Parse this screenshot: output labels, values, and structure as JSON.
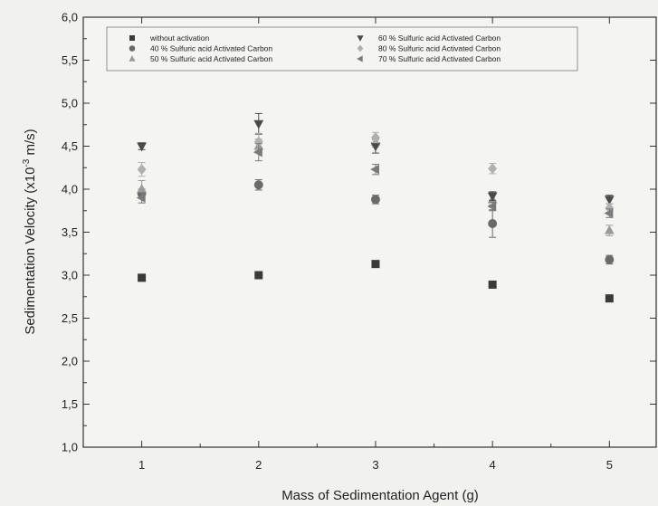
{
  "chart_data": {
    "type": "scatter",
    "xlabel": "Mass of Sedimentation Agent (g)",
    "ylabel": "Sedimentation Velocity (x10",
    "ylabel_sup": "-3",
    "ylabel_suffix": " m/s)",
    "xlim": [
      0.5,
      5.4
    ],
    "ylim": [
      1.0,
      6.0
    ],
    "xticks": [
      "1",
      "2",
      "3",
      "4",
      "5"
    ],
    "yticks": [
      "1,0",
      "1,5",
      "2,0",
      "2,5",
      "3,0",
      "3,5",
      "4,0",
      "4,5",
      "5,0",
      "5,5",
      "6,0"
    ],
    "legend_position": "top-left",
    "series": [
      {
        "name": "without activation",
        "marker": "square",
        "color": "#3a3a3a",
        "x": [
          1,
          2,
          3,
          4,
          5
        ],
        "y": [
          2.97,
          3.0,
          3.13,
          2.89,
          2.73
        ],
        "err": [
          0,
          0,
          0,
          0,
          0
        ]
      },
      {
        "name": "40 % Sulfuric acid Activated Carbon",
        "marker": "circle",
        "color": "#6a6a6a",
        "x": [
          1,
          2,
          3,
          4,
          5
        ],
        "y": [
          3.95,
          4.05,
          3.88,
          3.6,
          3.18
        ],
        "err": [
          0.05,
          0.06,
          0.05,
          0.16,
          0.05
        ]
      },
      {
        "name": "50 % Sulfuric acid Activated Carbon",
        "marker": "triangle-up",
        "color": "#9a9a9a",
        "x": [
          1,
          2,
          3,
          4,
          5
        ],
        "y": [
          4.0,
          4.5,
          4.55,
          3.88,
          3.52
        ],
        "err": [
          0.1,
          0.08,
          0.06,
          0.06,
          0.06
        ]
      },
      {
        "name": "60 % Sulfuric acid Activated Carbon",
        "marker": "triangle-down",
        "color": "#4a4a4a",
        "x": [
          1,
          2,
          3,
          4,
          5
        ],
        "y": [
          4.5,
          4.76,
          4.5,
          3.92,
          3.88
        ],
        "err": [
          0.04,
          0.12,
          0.08,
          0.05,
          0.05
        ]
      },
      {
        "name": "80 % Sulfuric acid Activated Carbon",
        "marker": "diamond",
        "color": "#b0b0b0",
        "x": [
          1,
          2,
          3,
          4,
          5
        ],
        "y": [
          4.23,
          4.55,
          4.6,
          4.24,
          3.78
        ],
        "err": [
          0.08,
          0.1,
          0.06,
          0.06,
          0.05
        ]
      },
      {
        "name": "70 % Sulfuric acid Activated Carbon",
        "marker": "triangle-left",
        "color": "#7a7a7a",
        "x": [
          1,
          2,
          3,
          4,
          5
        ],
        "y": [
          3.9,
          4.43,
          4.23,
          3.8,
          3.72
        ],
        "err": [
          0.06,
          0.1,
          0.06,
          0.05,
          0.05
        ]
      }
    ]
  }
}
